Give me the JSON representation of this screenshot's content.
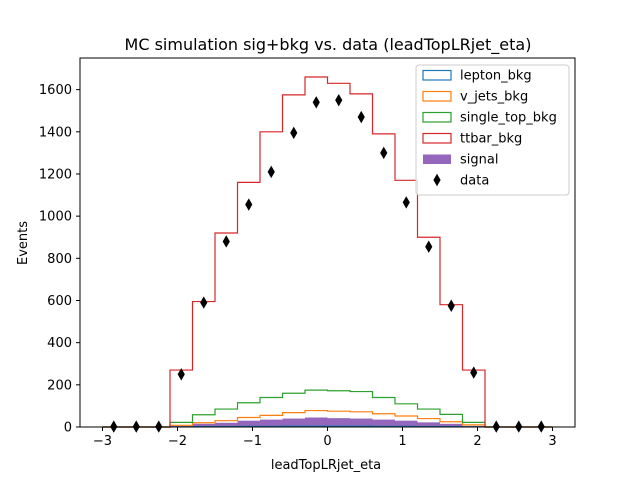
{
  "chart_data": {
    "type": "histogram",
    "title": "MC simulation sig+bkg vs. data (leadTopLRjet_eta)",
    "xlabel": "leadTopLRjet_eta",
    "ylabel": "Events",
    "xlim": [
      -3.3,
      3.3
    ],
    "ylim": [
      0,
      1750
    ],
    "xticks": [
      -3,
      -2,
      -1,
      0,
      1,
      2,
      3
    ],
    "yticks": [
      0,
      200,
      400,
      600,
      800,
      1000,
      1200,
      1400,
      1600
    ],
    "bin_edges": [
      -3.0,
      -2.7,
      -2.4,
      -2.1,
      -1.8,
      -1.5,
      -1.2,
      -0.9,
      -0.6,
      -0.3,
      0.0,
      0.3,
      0.6,
      0.9,
      1.2,
      1.5,
      1.8,
      2.1,
      2.4,
      2.7,
      3.0
    ],
    "bin_centers": [
      -2.85,
      -2.55,
      -2.25,
      -1.95,
      -1.65,
      -1.35,
      -1.05,
      -0.75,
      -0.45,
      -0.15,
      0.15,
      0.45,
      0.75,
      1.05,
      1.35,
      1.65,
      1.95,
      2.25,
      2.55,
      2.85
    ],
    "series": [
      {
        "name": "lepton_bkg",
        "kind": "step",
        "color": "#1f77b4",
        "values": [
          0,
          0,
          0,
          1,
          2,
          2,
          3,
          3,
          4,
          4,
          4,
          4,
          3,
          3,
          2,
          2,
          1,
          0,
          0,
          0
        ]
      },
      {
        "name": "v_jets_bkg",
        "kind": "step",
        "color": "#ff7f0e",
        "values": [
          0,
          0,
          0,
          8,
          20,
          30,
          45,
          55,
          68,
          78,
          75,
          72,
          63,
          52,
          40,
          25,
          10,
          0,
          0,
          0
        ]
      },
      {
        "name": "single_top_bkg",
        "kind": "step",
        "color": "#2ca02c",
        "values": [
          0,
          0,
          0,
          22,
          58,
          85,
          115,
          140,
          160,
          175,
          172,
          168,
          140,
          110,
          85,
          60,
          22,
          0,
          0,
          0
        ]
      },
      {
        "name": "ttbar_bkg",
        "kind": "step",
        "color": "#d62728",
        "values": [
          0,
          0,
          0,
          270,
          595,
          920,
          1160,
          1400,
          1575,
          1660,
          1630,
          1580,
          1390,
          1170,
          900,
          580,
          270,
          0,
          0,
          0
        ]
      },
      {
        "name": "signal",
        "kind": "filled",
        "color": "#9467bd",
        "values": [
          0,
          0,
          0,
          5,
          15,
          20,
          30,
          35,
          40,
          45,
          42,
          40,
          35,
          30,
          22,
          15,
          5,
          0,
          0,
          0
        ]
      }
    ],
    "data_points": {
      "name": "data",
      "marker": "diamond",
      "color": "#000000",
      "values": [
        2,
        2,
        2,
        250,
        590,
        880,
        1055,
        1210,
        1395,
        1540,
        1550,
        1470,
        1300,
        1065,
        855,
        575,
        258,
        2,
        2,
        2
      ]
    },
    "legend": {
      "placement": "upper-right",
      "entries": [
        "lepton_bkg",
        "v_jets_bkg",
        "single_top_bkg",
        "ttbar_bkg",
        "signal",
        "data"
      ]
    },
    "grid": false
  }
}
